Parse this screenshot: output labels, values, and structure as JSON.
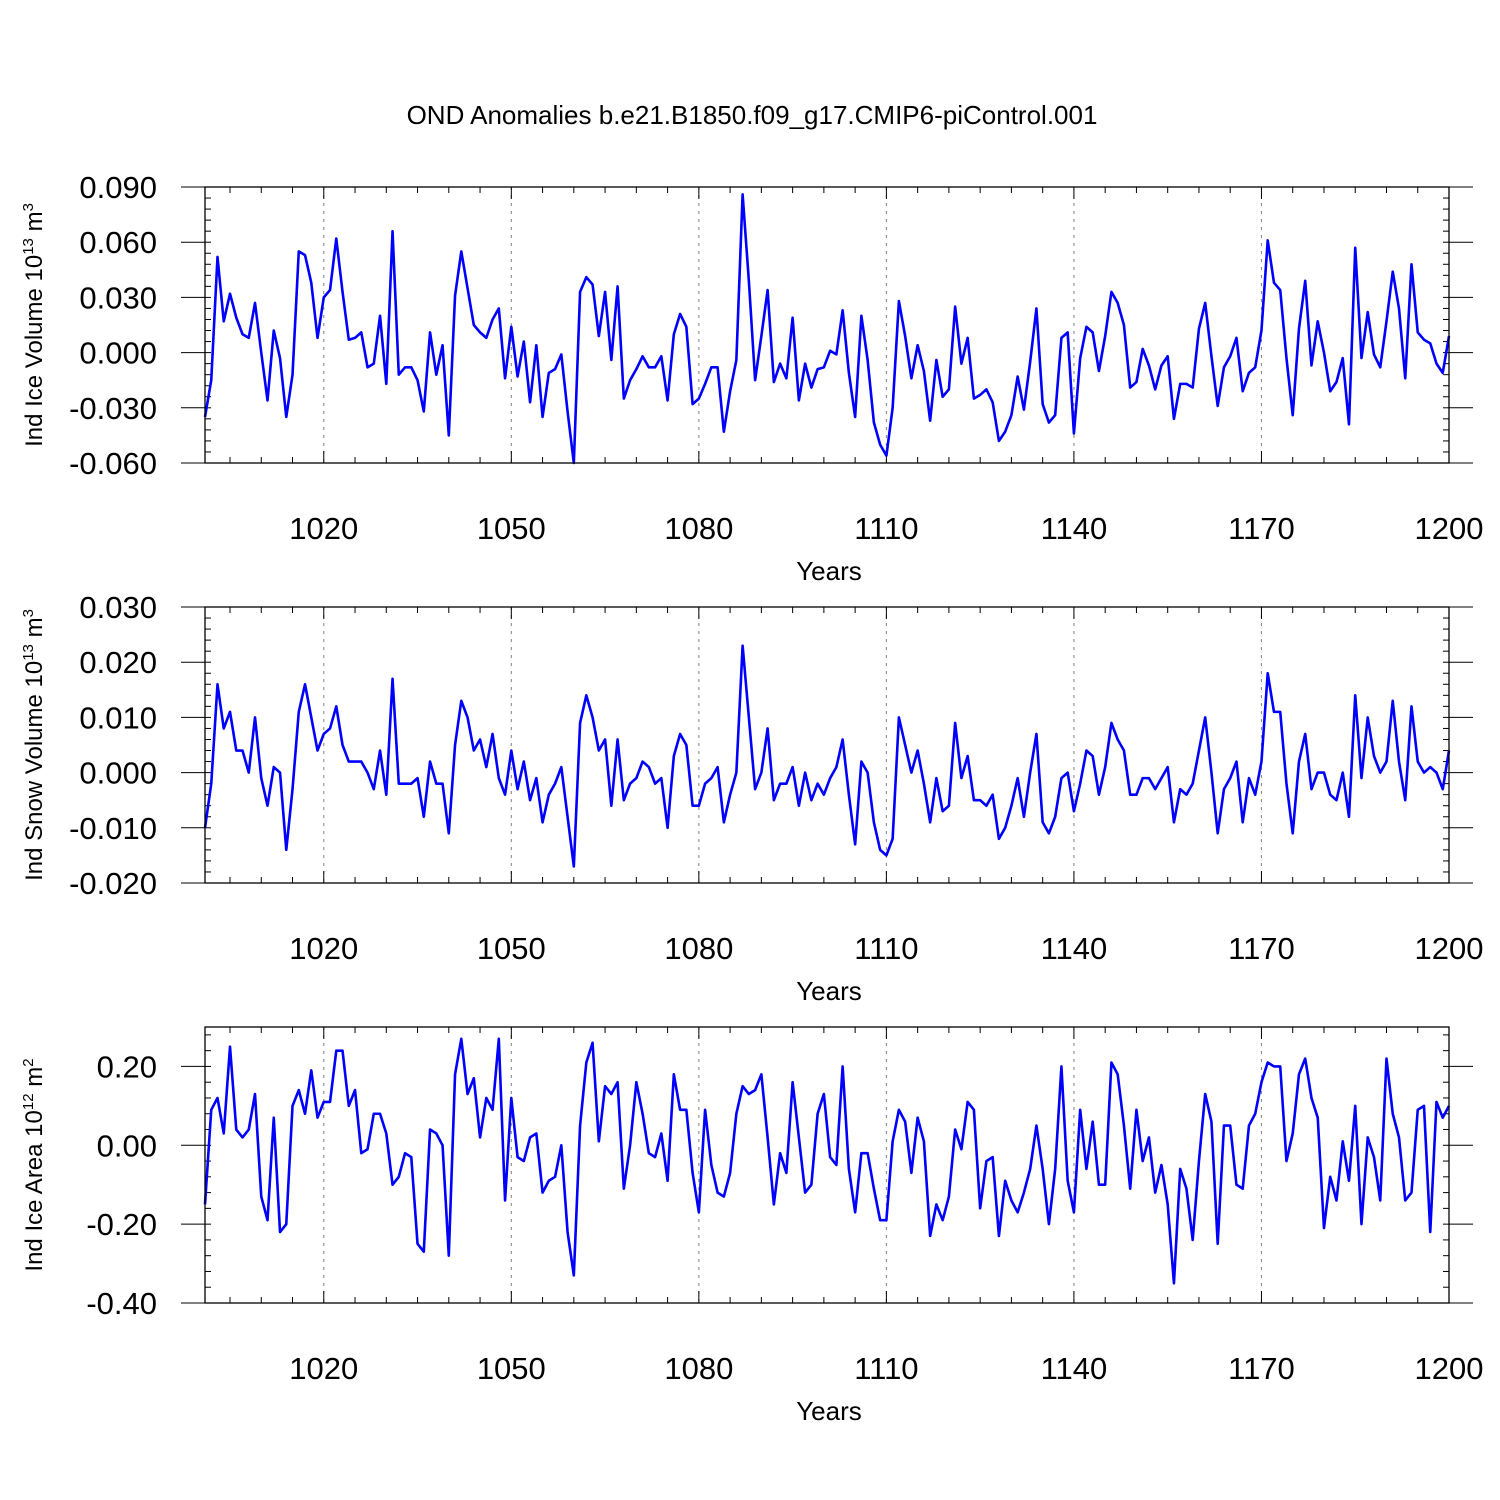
{
  "title": "OND Anomalies b.e21.B1850.f09_g17.CMIP6-piControl.001",
  "colors": {
    "series": "#0000ff",
    "grid": "#8a8a8a",
    "axis": "#000000"
  },
  "chart_data": [
    {
      "type": "line",
      "title": "",
      "xlabel": "Years",
      "ylabel": {
        "main": "Ind Ice Volume 10",
        "exp": "13",
        "unit": " m",
        "unit_exp": "3"
      },
      "xlim": [
        1001,
        1200
      ],
      "ylim": [
        -0.06,
        0.09
      ],
      "xticks": [
        1020,
        1050,
        1080,
        1110,
        1140,
        1170,
        1200
      ],
      "xtick_labels": [
        "1020",
        "1050",
        "1080",
        "1110",
        "1140",
        "1170",
        "1200"
      ],
      "yticks": [
        -0.06,
        -0.03,
        0.0,
        0.03,
        0.06,
        0.09
      ],
      "ytick_labels": [
        "-0.060",
        "-0.030",
        "0.000",
        "0.030",
        "0.060",
        "0.090"
      ],
      "x_start": 1001,
      "x_step": 1,
      "values": [
        -0.035,
        -0.015,
        0.052,
        0.017,
        0.032,
        0.019,
        0.01,
        0.008,
        0.027,
        0.0,
        -0.026,
        0.012,
        -0.003,
        -0.035,
        -0.012,
        0.055,
        0.053,
        0.038,
        0.008,
        0.03,
        0.034,
        0.062,
        0.033,
        0.007,
        0.008,
        0.011,
        -0.008,
        -0.006,
        0.02,
        -0.017,
        0.066,
        -0.012,
        -0.008,
        -0.008,
        -0.015,
        -0.032,
        0.011,
        -0.012,
        0.004,
        -0.045,
        0.031,
        0.055,
        0.035,
        0.015,
        0.011,
        0.008,
        0.018,
        0.024,
        -0.014,
        0.014,
        -0.013,
        0.006,
        -0.027,
        0.004,
        -0.035,
        -0.011,
        -0.009,
        -0.001,
        -0.032,
        -0.06,
        0.033,
        0.041,
        0.037,
        0.009,
        0.033,
        -0.004,
        0.036,
        -0.025,
        -0.015,
        -0.009,
        -0.002,
        -0.008,
        -0.008,
        -0.002,
        -0.026,
        0.01,
        0.021,
        0.014,
        -0.028,
        -0.025,
        -0.017,
        -0.008,
        -0.008,
        -0.043,
        -0.021,
        -0.004,
        0.086,
        0.039,
        -0.015,
        0.009,
        0.034,
        -0.016,
        -0.006,
        -0.014,
        0.019,
        -0.026,
        -0.006,
        -0.019,
        -0.009,
        -0.008,
        0.001,
        -0.001,
        0.023,
        -0.011,
        -0.035,
        0.02,
        -0.004,
        -0.038,
        -0.05,
        -0.056,
        -0.03,
        0.028,
        0.009,
        -0.014,
        0.004,
        -0.01,
        -0.037,
        -0.004,
        -0.024,
        -0.02,
        0.025,
        -0.006,
        0.008,
        -0.025,
        -0.023,
        -0.02,
        -0.027,
        -0.048,
        -0.043,
        -0.034,
        -0.013,
        -0.031,
        -0.005,
        0.024,
        -0.028,
        -0.038,
        -0.034,
        0.008,
        0.011,
        -0.044,
        -0.003,
        0.014,
        0.011,
        -0.01,
        0.009,
        0.033,
        0.027,
        0.015,
        -0.019,
        -0.016,
        0.002,
        -0.007,
        -0.02,
        -0.007,
        -0.002,
        -0.036,
        -0.017,
        -0.017,
        -0.019,
        0.013,
        0.027,
        -0.002,
        -0.029,
        -0.008,
        -0.002,
        0.008,
        -0.021,
        -0.011,
        -0.008,
        0.012,
        0.061,
        0.038,
        0.034,
        -0.003,
        -0.034,
        0.013,
        0.039,
        -0.007,
        0.017,
        0.0,
        -0.021,
        -0.016,
        -0.003,
        -0.039,
        0.057,
        -0.003,
        0.022,
        -0.001,
        -0.008,
        0.017,
        0.044,
        0.024,
        -0.014,
        0.048,
        0.011,
        0.007,
        0.005,
        -0.006,
        -0.011,
        0.009
      ]
    },
    {
      "type": "line",
      "title": "",
      "xlabel": "Years",
      "ylabel": {
        "main": "Ind Snow Volume 10",
        "exp": "13",
        "unit": " m",
        "unit_exp": "3"
      },
      "xlim": [
        1001,
        1200
      ],
      "ylim": [
        -0.02,
        0.03
      ],
      "xticks": [
        1020,
        1050,
        1080,
        1110,
        1140,
        1170,
        1200
      ],
      "xtick_labels": [
        "1020",
        "1050",
        "1080",
        "1110",
        "1140",
        "1170",
        "1200"
      ],
      "yticks": [
        -0.02,
        -0.01,
        0.0,
        0.01,
        0.02,
        0.03
      ],
      "ytick_labels": [
        "-0.020",
        "-0.010",
        "0.000",
        "0.010",
        "0.020",
        "0.030"
      ],
      "x_start": 1001,
      "x_step": 1,
      "values": [
        -0.01,
        -0.002,
        0.016,
        0.008,
        0.011,
        0.004,
        0.004,
        0.0,
        0.01,
        -0.001,
        -0.006,
        0.001,
        0.0,
        -0.014,
        -0.003,
        0.011,
        0.016,
        0.01,
        0.004,
        0.007,
        0.008,
        0.012,
        0.005,
        0.002,
        0.002,
        0.002,
        0.0,
        -0.003,
        0.004,
        -0.004,
        0.017,
        -0.002,
        -0.002,
        -0.002,
        -0.001,
        -0.008,
        0.002,
        -0.002,
        -0.002,
        -0.011,
        0.005,
        0.013,
        0.01,
        0.004,
        0.006,
        0.001,
        0.007,
        -0.001,
        -0.004,
        0.004,
        -0.003,
        0.002,
        -0.005,
        -0.001,
        -0.009,
        -0.004,
        -0.002,
        0.001,
        -0.008,
        -0.017,
        0.009,
        0.014,
        0.01,
        0.004,
        0.006,
        -0.006,
        0.006,
        -0.005,
        -0.002,
        -0.001,
        0.002,
        0.001,
        -0.002,
        -0.001,
        -0.01,
        0.003,
        0.007,
        0.005,
        -0.006,
        -0.006,
        -0.002,
        -0.001,
        0.001,
        -0.009,
        -0.004,
        0.0,
        0.023,
        0.01,
        -0.003,
        0.0,
        0.008,
        -0.005,
        -0.002,
        -0.002,
        0.001,
        -0.006,
        0.0,
        -0.005,
        -0.002,
        -0.004,
        -0.001,
        0.001,
        0.006,
        -0.004,
        -0.013,
        0.002,
        0.0,
        -0.009,
        -0.014,
        -0.015,
        -0.012,
        0.01,
        0.005,
        0.0,
        0.004,
        -0.002,
        -0.009,
        -0.001,
        -0.007,
        -0.006,
        0.009,
        -0.001,
        0.003,
        -0.005,
        -0.005,
        -0.006,
        -0.004,
        -0.012,
        -0.01,
        -0.006,
        -0.001,
        -0.008,
        0.0,
        0.007,
        -0.009,
        -0.011,
        -0.008,
        -0.001,
        0.0,
        -0.007,
        -0.002,
        0.004,
        0.003,
        -0.004,
        0.001,
        0.009,
        0.006,
        0.004,
        -0.004,
        -0.004,
        -0.001,
        -0.001,
        -0.003,
        -0.001,
        0.001,
        -0.009,
        -0.003,
        -0.004,
        -0.002,
        0.004,
        0.01,
        0.0,
        -0.011,
        -0.003,
        -0.001,
        0.002,
        -0.009,
        -0.001,
        -0.004,
        0.002,
        0.018,
        0.011,
        0.011,
        -0.002,
        -0.011,
        0.002,
        0.007,
        -0.003,
        0.0,
        0.0,
        -0.004,
        -0.005,
        0.0,
        -0.008,
        0.014,
        -0.001,
        0.01,
        0.003,
        0.0,
        0.002,
        0.013,
        0.002,
        -0.005,
        0.012,
        0.002,
        0.0,
        0.001,
        0.0,
        -0.003,
        0.004
      ]
    },
    {
      "type": "line",
      "title": "",
      "xlabel": "Years",
      "ylabel": {
        "main": "Ind Ice Area 10",
        "exp": "12",
        "unit": " m",
        "unit_exp": "2"
      },
      "xlim": [
        1001,
        1200
      ],
      "ylim": [
        -0.4,
        0.3
      ],
      "xticks": [
        1020,
        1050,
        1080,
        1110,
        1140,
        1170,
        1200
      ],
      "xtick_labels": [
        "1020",
        "1050",
        "1080",
        "1110",
        "1140",
        "1170",
        "1200"
      ],
      "yticks": [
        -0.4,
        -0.2,
        0.0,
        0.2
      ],
      "ytick_labels": [
        "-0.40",
        "-0.20",
        "0.00",
        "0.20"
      ],
      "x_start": 1001,
      "x_step": 1,
      "values": [
        -0.15,
        0.09,
        0.12,
        0.03,
        0.25,
        0.04,
        0.02,
        0.04,
        0.13,
        -0.13,
        -0.19,
        0.07,
        -0.22,
        -0.2,
        0.1,
        0.14,
        0.08,
        0.19,
        0.07,
        0.11,
        0.11,
        0.24,
        0.24,
        0.1,
        0.14,
        -0.02,
        -0.01,
        0.08,
        0.08,
        0.03,
        -0.1,
        -0.08,
        -0.02,
        -0.03,
        -0.25,
        -0.27,
        0.04,
        0.03,
        0.0,
        -0.28,
        0.18,
        0.27,
        0.13,
        0.17,
        0.02,
        0.12,
        0.09,
        0.27,
        -0.14,
        0.12,
        -0.03,
        -0.04,
        0.02,
        0.03,
        -0.12,
        -0.09,
        -0.08,
        0.0,
        -0.22,
        -0.33,
        0.05,
        0.21,
        0.26,
        0.01,
        0.15,
        0.13,
        0.16,
        -0.11,
        0.0,
        0.16,
        0.08,
        -0.02,
        -0.03,
        0.03,
        -0.09,
        0.18,
        0.09,
        0.09,
        -0.07,
        -0.17,
        0.09,
        -0.05,
        -0.12,
        -0.13,
        -0.07,
        0.08,
        0.15,
        0.13,
        0.14,
        0.18,
        0.02,
        -0.15,
        -0.02,
        -0.07,
        0.16,
        0.02,
        -0.12,
        -0.1,
        0.08,
        0.13,
        -0.03,
        -0.05,
        0.2,
        -0.06,
        -0.17,
        -0.02,
        -0.02,
        -0.11,
        -0.19,
        -0.19,
        0.01,
        0.09,
        0.06,
        -0.07,
        0.07,
        0.01,
        -0.23,
        -0.15,
        -0.19,
        -0.13,
        0.04,
        -0.01,
        0.11,
        0.09,
        -0.16,
        -0.04,
        -0.03,
        -0.23,
        -0.09,
        -0.14,
        -0.17,
        -0.12,
        -0.06,
        0.05,
        -0.06,
        -0.2,
        -0.06,
        0.2,
        -0.09,
        -0.17,
        0.09,
        -0.06,
        0.06,
        -0.1,
        -0.1,
        0.21,
        0.18,
        0.05,
        -0.11,
        0.09,
        -0.04,
        0.02,
        -0.12,
        -0.05,
        -0.15,
        -0.35,
        -0.06,
        -0.11,
        -0.24,
        -0.04,
        0.13,
        0.06,
        -0.25,
        0.05,
        0.05,
        -0.1,
        -0.11,
        0.05,
        0.08,
        0.16,
        0.21,
        0.2,
        0.2,
        -0.04,
        0.03,
        0.18,
        0.22,
        0.12,
        0.07,
        -0.21,
        -0.08,
        -0.14,
        0.01,
        -0.09,
        0.1,
        -0.2,
        0.02,
        -0.03,
        -0.14,
        0.22,
        0.08,
        0.02,
        -0.14,
        -0.12,
        0.09,
        0.1,
        -0.22,
        0.11,
        0.07,
        0.1
      ]
    }
  ]
}
